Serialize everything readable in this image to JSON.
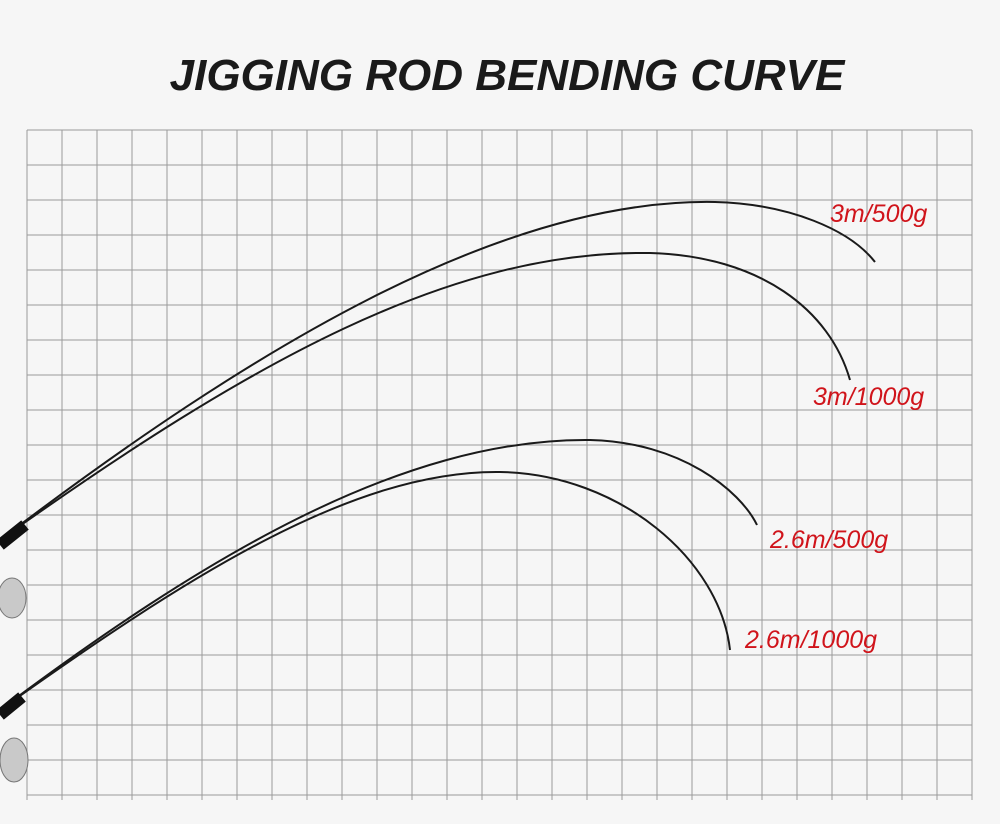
{
  "title": "JIGGING ROD BENDING CURVE",
  "curves": [
    {
      "label": "3m/500g"
    },
    {
      "label": "3m/1000g"
    },
    {
      "label": "2.6m/500g"
    },
    {
      "label": "2.6m/1000g"
    }
  ]
}
